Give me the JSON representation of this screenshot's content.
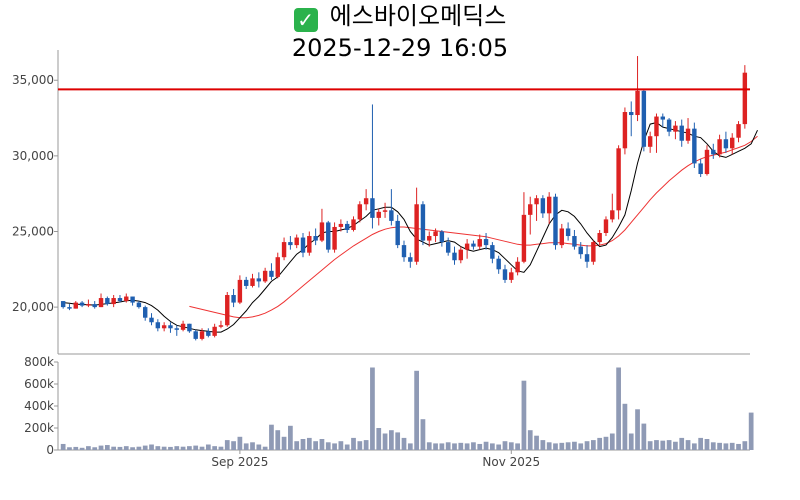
{
  "title": {
    "check_icon": "check-mark-icon",
    "name": "에스바이오메딕스",
    "datetime": "2025-12-29 16:05"
  },
  "chart_data": [
    {
      "type": "candlestick",
      "title": "에스바이오메딕스",
      "y_ticks": [
        "35,000",
        "30,000",
        "25,000",
        "20,000"
      ],
      "y_tick_values": [
        35000,
        30000,
        25000,
        20000
      ],
      "ylim": [
        16900,
        37000
      ],
      "reference_line": {
        "value": 34400,
        "color": "#dd0000"
      },
      "up_color": "#dd2222",
      "down_color": "#1f5fb0",
      "ma_short_color": "#000000",
      "ma_long_color": "#ee3333",
      "ohlc": [
        [
          20400,
          20400,
          19900,
          20000
        ],
        [
          20000,
          20200,
          19800,
          19900
        ],
        [
          19900,
          20400,
          19900,
          20300
        ],
        [
          20300,
          20400,
          20000,
          20100
        ],
        [
          20100,
          20500,
          20000,
          20200
        ],
        [
          20200,
          20400,
          19900,
          20000
        ],
        [
          20000,
          20900,
          20000,
          20600
        ],
        [
          20600,
          20700,
          20100,
          20200
        ],
        [
          20200,
          20800,
          20000,
          20600
        ],
        [
          20600,
          20800,
          20300,
          20400
        ],
        [
          20400,
          20900,
          20300,
          20700
        ],
        [
          20700,
          20700,
          20100,
          20300
        ],
        [
          20300,
          20400,
          19900,
          20000
        ],
        [
          20000,
          20100,
          19100,
          19300
        ],
        [
          19300,
          19600,
          18800,
          19000
        ],
        [
          19000,
          19200,
          18400,
          18600
        ],
        [
          18600,
          19000,
          18400,
          18800
        ],
        [
          18800,
          19000,
          18300,
          18600
        ],
        [
          18600,
          18800,
          18100,
          18500
        ],
        [
          18500,
          19100,
          18400,
          18900
        ],
        [
          18900,
          18900,
          18300,
          18400
        ],
        [
          18400,
          18500,
          17800,
          17900
        ],
        [
          17900,
          18600,
          17800,
          18400
        ],
        [
          18400,
          18600,
          18000,
          18100
        ],
        [
          18100,
          18900,
          18000,
          18700
        ],
        [
          18700,
          19100,
          18600,
          18800
        ],
        [
          18800,
          21000,
          18700,
          20800
        ],
        [
          20800,
          21200,
          20000,
          20300
        ],
        [
          20300,
          22100,
          20200,
          21800
        ],
        [
          21800,
          22000,
          21200,
          21400
        ],
        [
          21400,
          22200,
          21300,
          21900
        ],
        [
          21900,
          22300,
          21300,
          21700
        ],
        [
          21700,
          22600,
          21600,
          22400
        ],
        [
          22400,
          22900,
          21800,
          22000
        ],
        [
          22000,
          23600,
          21900,
          23300
        ],
        [
          23300,
          24600,
          23100,
          24300
        ],
        [
          24300,
          24700,
          23800,
          24100
        ],
        [
          24100,
          24800,
          23900,
          24600
        ],
        [
          24600,
          24900,
          23300,
          23600
        ],
        [
          23600,
          25000,
          23400,
          24700
        ],
        [
          24700,
          25200,
          24100,
          24400
        ],
        [
          24400,
          26500,
          24300,
          25600
        ],
        [
          25600,
          25700,
          23600,
          23800
        ],
        [
          23800,
          25600,
          23600,
          25300
        ],
        [
          25300,
          25800,
          25000,
          25500
        ],
        [
          25500,
          25700,
          24900,
          25100
        ],
        [
          25100,
          26000,
          25000,
          25800
        ],
        [
          25800,
          27000,
          25600,
          26800
        ],
        [
          26800,
          27800,
          26400,
          27200
        ],
        [
          27200,
          33400,
          25200,
          25900
        ],
        [
          25900,
          26500,
          25400,
          26300
        ],
        [
          26300,
          26900,
          25900,
          26400
        ],
        [
          26400,
          27800,
          25400,
          25700
        ],
        [
          25700,
          26100,
          23900,
          24100
        ],
        [
          24100,
          24400,
          23000,
          23300
        ],
        [
          23300,
          23600,
          22600,
          23000
        ],
        [
          23000,
          27900,
          22800,
          26800
        ],
        [
          26800,
          27000,
          24100,
          24400
        ],
        [
          24400,
          25000,
          24000,
          24700
        ],
        [
          24700,
          25200,
          24300,
          25000
        ],
        [
          25000,
          25100,
          24000,
          24300
        ],
        [
          24300,
          24600,
          23400,
          23600
        ],
        [
          23600,
          24000,
          22800,
          23100
        ],
        [
          23100,
          24000,
          22900,
          23800
        ],
        [
          23800,
          24500,
          23200,
          24200
        ],
        [
          24200,
          24400,
          23800,
          24000
        ],
        [
          24000,
          24800,
          23800,
          24500
        ],
        [
          24500,
          24900,
          23800,
          24100
        ],
        [
          24100,
          24300,
          22900,
          23200
        ],
        [
          23200,
          23400,
          22200,
          22500
        ],
        [
          22500,
          22800,
          21600,
          21800
        ],
        [
          21800,
          22600,
          21600,
          22300
        ],
        [
          22300,
          23300,
          22100,
          23000
        ],
        [
          23000,
          27600,
          22900,
          26100
        ],
        [
          26100,
          27300,
          24800,
          26800
        ],
        [
          26800,
          27400,
          25700,
          27200
        ],
        [
          27200,
          27400,
          25900,
          26200
        ],
        [
          26200,
          27600,
          25500,
          27300
        ],
        [
          27300,
          27500,
          23800,
          24100
        ],
        [
          24100,
          25500,
          23900,
          25200
        ],
        [
          25200,
          25600,
          24400,
          24700
        ],
        [
          24700,
          25100,
          23800,
          24000
        ],
        [
          24000,
          24300,
          23200,
          23500
        ],
        [
          23500,
          24100,
          22600,
          23000
        ],
        [
          23000,
          24400,
          22800,
          24300
        ],
        [
          24300,
          25100,
          24100,
          24900
        ],
        [
          24900,
          26000,
          24700,
          25800
        ],
        [
          25800,
          27500,
          25600,
          26400
        ],
        [
          26400,
          30700,
          25800,
          30500
        ],
        [
          30500,
          33200,
          30100,
          32900
        ],
        [
          32900,
          33600,
          31300,
          32700
        ],
        [
          32700,
          36600,
          32300,
          34300
        ],
        [
          34300,
          34400,
          30300,
          30600
        ],
        [
          30600,
          31600,
          30200,
          31300
        ],
        [
          31300,
          32800,
          30200,
          32600
        ],
        [
          32600,
          32800,
          31900,
          32400
        ],
        [
          32400,
          32500,
          31300,
          31600
        ],
        [
          31600,
          32300,
          31100,
          32000
        ],
        [
          32000,
          32400,
          30600,
          31000
        ],
        [
          31000,
          32500,
          30800,
          31800
        ],
        [
          31800,
          32200,
          29200,
          29500
        ],
        [
          29500,
          29800,
          28600,
          28800
        ],
        [
          28800,
          30700,
          28700,
          30400
        ],
        [
          30400,
          30800,
          29800,
          30100
        ],
        [
          30100,
          31400,
          29900,
          31100
        ],
        [
          31100,
          31600,
          30200,
          30500
        ],
        [
          30500,
          31500,
          30100,
          31200
        ],
        [
          31200,
          32300,
          30900,
          32100
        ],
        [
          32100,
          36000,
          31800,
          35500
        ]
      ],
      "ma_short": [
        20300,
        20250,
        20200,
        20170,
        20150,
        20130,
        20180,
        20230,
        20280,
        20340,
        20420,
        20450,
        20400,
        20300,
        20100,
        19800,
        19400,
        19050,
        18800,
        18700,
        18600,
        18500,
        18450,
        18400,
        18350,
        18350,
        18550,
        18850,
        19300,
        19750,
        20300,
        20700,
        21200,
        21700,
        22000,
        22500,
        23000,
        23500,
        23800,
        24200,
        24500,
        24900,
        25000,
        25000,
        25100,
        25200,
        25400,
        25700,
        26000,
        26400,
        26500,
        26600,
        26600,
        26300,
        25800,
        25000,
        24500,
        24300,
        24100,
        24200,
        24300,
        24400,
        24300,
        24000,
        23800,
        23700,
        23800,
        23900,
        23800,
        23600,
        23200,
        22800,
        22400,
        22300,
        22800,
        23700,
        24600,
        25500,
        26100,
        26400,
        26300,
        26000,
        25500,
        24900,
        24400,
        24000,
        24100,
        24600,
        25300,
        26100,
        27700,
        29500,
        31000,
        32100,
        32200,
        31900,
        31800,
        31700,
        31600,
        31500,
        31300,
        31200,
        30800,
        30300,
        30000,
        29900,
        30100,
        30300,
        30500,
        30800,
        31700
      ],
      "ma_long": [
        null,
        null,
        null,
        null,
        null,
        null,
        null,
        null,
        null,
        null,
        null,
        null,
        null,
        null,
        null,
        null,
        null,
        null,
        null,
        null,
        20050,
        19950,
        19850,
        19750,
        19650,
        19550,
        19450,
        19350,
        19300,
        19300,
        19350,
        19450,
        19600,
        19800,
        20050,
        20350,
        20700,
        21050,
        21400,
        21750,
        22100,
        22450,
        22800,
        23150,
        23450,
        23750,
        24050,
        24300,
        24550,
        24800,
        25000,
        25150,
        25250,
        25300,
        25300,
        25250,
        25200,
        25150,
        25100,
        25050,
        25000,
        24950,
        24900,
        24850,
        24800,
        24750,
        24700,
        24650,
        24550,
        24450,
        24350,
        24250,
        24150,
        24100,
        24100,
        24150,
        24200,
        24250,
        24250,
        24250,
        24200,
        24150,
        24100,
        24050,
        24050,
        24100,
        24200,
        24400,
        24700,
        25100,
        25600,
        26100,
        26600,
        27100,
        27550,
        27950,
        28350,
        28700,
        29050,
        29350,
        29600,
        29800,
        29950,
        30050,
        30150,
        30250,
        30400,
        30550,
        30700,
        30950,
        31300
      ]
    },
    {
      "type": "bar",
      "title": "",
      "y_ticks": [
        "800k",
        "600k",
        "400k",
        "200k",
        "0"
      ],
      "y_tick_values": [
        800000,
        600000,
        400000,
        200000,
        0
      ],
      "ylim": [
        0,
        800000
      ],
      "x_ticks": [
        {
          "label": "Sep 2025",
          "index": 28
        },
        {
          "label": "Nov 2025",
          "index": 71
        }
      ],
      "bar_color": "#8f9ab5",
      "values": [
        55000,
        25000,
        28000,
        20000,
        35000,
        25000,
        40000,
        45000,
        30000,
        28000,
        35000,
        25000,
        30000,
        40000,
        50000,
        35000,
        30000,
        28000,
        35000,
        30000,
        35000,
        40000,
        30000,
        50000,
        35000,
        30000,
        90000,
        80000,
        120000,
        60000,
        70000,
        50000,
        30000,
        230000,
        180000,
        120000,
        220000,
        80000,
        100000,
        110000,
        80000,
        100000,
        70000,
        60000,
        80000,
        50000,
        110000,
        80000,
        90000,
        750000,
        200000,
        150000,
        180000,
        160000,
        110000,
        60000,
        720000,
        280000,
        70000,
        60000,
        60000,
        70000,
        60000,
        65000,
        60000,
        70000,
        55000,
        75000,
        60000,
        50000,
        80000,
        70000,
        60000,
        630000,
        180000,
        130000,
        90000,
        70000,
        60000,
        65000,
        70000,
        75000,
        60000,
        80000,
        90000,
        110000,
        120000,
        150000,
        750000,
        420000,
        150000,
        370000,
        240000,
        80000,
        90000,
        85000,
        90000,
        75000,
        110000,
        90000,
        60000,
        110000,
        100000,
        70000,
        65000,
        60000,
        65000,
        55000,
        80000,
        340000
      ]
    }
  ]
}
